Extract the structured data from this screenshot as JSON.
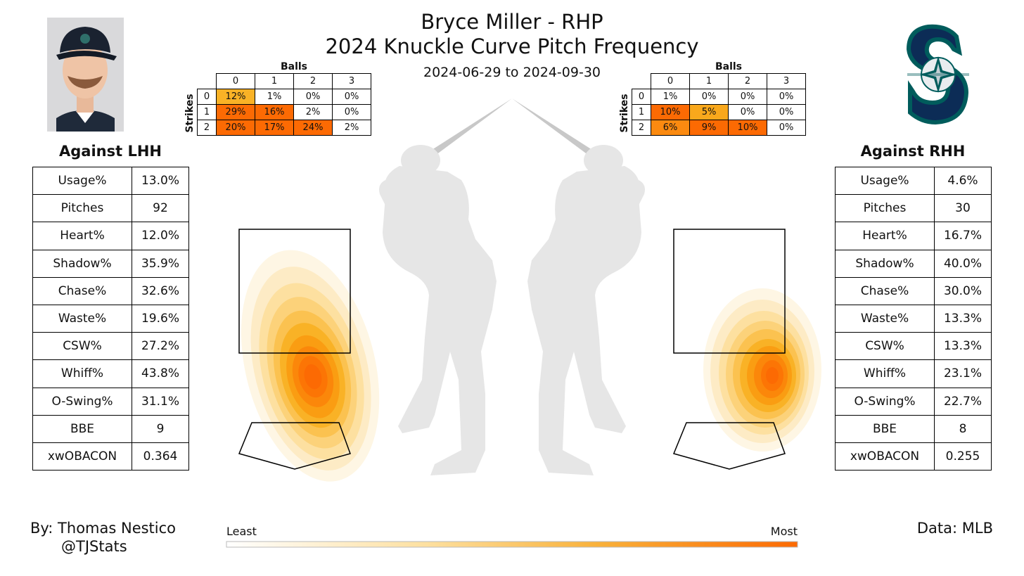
{
  "header": {
    "title_line1": "Bryce Miller - RHP",
    "title_line2": "2024 Knuckle Curve Pitch Frequency",
    "date_range": "2024-06-29 to 2024-09-30"
  },
  "player_photo_icon": "player-headshot",
  "team_logo_icon": "seattle-mariners-logo",
  "lhh": {
    "title": "Against LHH",
    "stats": [
      {
        "label": "Usage%",
        "value": "13.0%"
      },
      {
        "label": "Pitches",
        "value": "92"
      },
      {
        "label": "Heart%",
        "value": "12.0%"
      },
      {
        "label": "Shadow%",
        "value": "35.9%"
      },
      {
        "label": "Chase%",
        "value": "32.6%"
      },
      {
        "label": "Waste%",
        "value": "19.6%"
      },
      {
        "label": "CSW%",
        "value": "27.2%"
      },
      {
        "label": "Whiff%",
        "value": "43.8%"
      },
      {
        "label": "O-Swing%",
        "value": "31.1%"
      },
      {
        "label": "BBE",
        "value": "9"
      },
      {
        "label": "xwOBACON",
        "value": "0.364"
      }
    ],
    "count_table": {
      "balls_label": "Balls",
      "strikes_label": "Strikes",
      "ball_headers": [
        "0",
        "1",
        "2",
        "3"
      ],
      "strike_headers": [
        "0",
        "1",
        "2"
      ],
      "cells": [
        [
          "12%",
          "1%",
          "0%",
          "0%"
        ],
        [
          "29%",
          "16%",
          "2%",
          "0%"
        ],
        [
          "20%",
          "17%",
          "24%",
          "2%"
        ]
      ],
      "values": [
        [
          12,
          1,
          0,
          0
        ],
        [
          29,
          16,
          2,
          0
        ],
        [
          20,
          17,
          24,
          2
        ]
      ]
    }
  },
  "rhh": {
    "title": "Against RHH",
    "stats": [
      {
        "label": "Usage%",
        "value": "4.6%"
      },
      {
        "label": "Pitches",
        "value": "30"
      },
      {
        "label": "Heart%",
        "value": "16.7%"
      },
      {
        "label": "Shadow%",
        "value": "40.0%"
      },
      {
        "label": "Chase%",
        "value": "30.0%"
      },
      {
        "label": "Waste%",
        "value": "13.3%"
      },
      {
        "label": "CSW%",
        "value": "13.3%"
      },
      {
        "label": "Whiff%",
        "value": "23.1%"
      },
      {
        "label": "O-Swing%",
        "value": "22.7%"
      },
      {
        "label": "BBE",
        "value": "8"
      },
      {
        "label": "xwOBACON",
        "value": "0.255"
      }
    ],
    "count_table": {
      "balls_label": "Balls",
      "strikes_label": "Strikes",
      "ball_headers": [
        "0",
        "1",
        "2",
        "3"
      ],
      "strike_headers": [
        "0",
        "1",
        "2"
      ],
      "cells": [
        [
          "1%",
          "0%",
          "0%",
          "0%"
        ],
        [
          "10%",
          "5%",
          "0%",
          "0%"
        ],
        [
          "6%",
          "9%",
          "10%",
          "0%"
        ]
      ],
      "values": [
        [
          1,
          0,
          0,
          0
        ],
        [
          10,
          5,
          0,
          0
        ],
        [
          6,
          9,
          10,
          0
        ]
      ]
    }
  },
  "legend": {
    "least": "Least",
    "most": "Most",
    "color_low": "#ffffff",
    "color_high": "#fc6a03"
  },
  "footer": {
    "author": "By: Thomas Nestico",
    "handle": "@TJStats",
    "source": "Data: MLB"
  },
  "colors": {
    "heat_light": "#fde3b0",
    "heat_mid": "#fbb726",
    "heat_dark": "#fc6a03",
    "silhouette": "#e6e6e6",
    "bat": "#c8c8c8"
  },
  "chart_data": {
    "type": "heatmap",
    "description_series": [
      {
        "name": "Against LHH",
        "density_peak_zone_position": "low-middle, just below strike zone"
      },
      {
        "name": "Against RHH",
        "density_peak_zone_position": "low-away, below and right of strike zone"
      }
    ]
  }
}
